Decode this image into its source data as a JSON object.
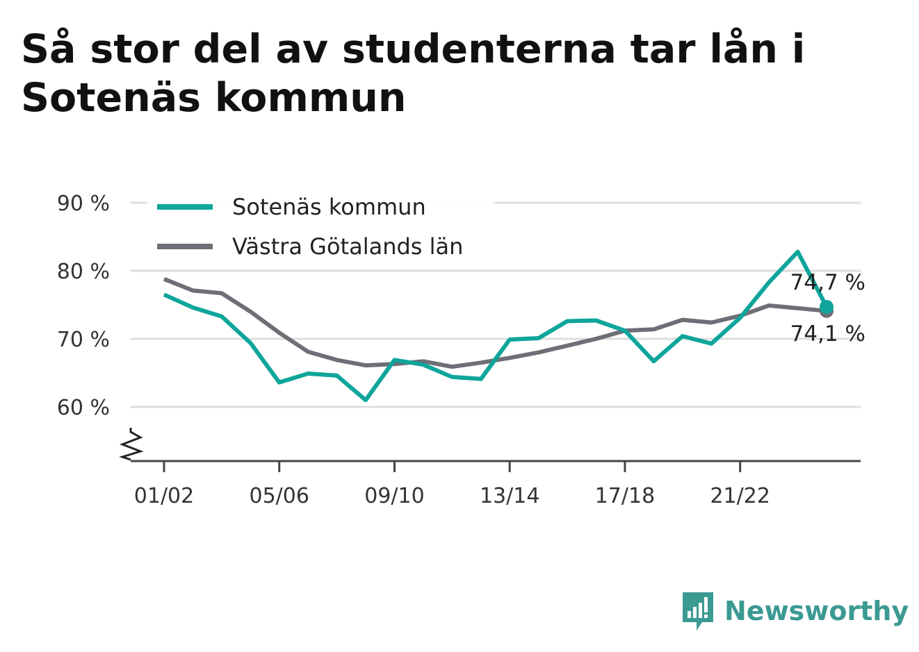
{
  "title": "Så stor del av studenterna tar lån i Sotenäs kommun",
  "brand": {
    "name": "Newsworthy",
    "icon": "newsworthy-logo-icon"
  },
  "colors": {
    "sotenas": "#0ea59b",
    "vastra": "#6e6e76",
    "grid": "#dddddd",
    "axis": "#444444"
  },
  "chart_data": {
    "type": "line",
    "title": "Så stor del av studenterna tar lån i Sotenäs kommun",
    "x": [
      "01/02",
      "02/03",
      "03/04",
      "04/05",
      "05/06",
      "06/07",
      "07/08",
      "08/09",
      "09/10",
      "10/11",
      "11/12",
      "12/13",
      "13/14",
      "14/15",
      "15/16",
      "16/17",
      "17/18",
      "18/19",
      "19/20",
      "20/21",
      "21/22",
      "22/23",
      "23/24",
      "24/25"
    ],
    "x_tick_labels": [
      "01/02",
      "05/06",
      "09/10",
      "13/14",
      "17/18",
      "21/22"
    ],
    "y_tick_labels": [
      "60 %",
      "70 %",
      "80 %",
      "90 %"
    ],
    "ylim": [
      52,
      90
    ],
    "y_ticks": [
      60,
      70,
      80,
      90
    ],
    "y_axis_break": true,
    "grid": true,
    "legend": "top-left",
    "series": [
      {
        "name": "Sotenäs kommun",
        "color": "#0ea59b",
        "values": [
          76.5,
          74.6,
          73.3,
          69.4,
          63.6,
          64.9,
          64.6,
          61.0,
          66.9,
          66.2,
          64.4,
          64.1,
          69.9,
          70.1,
          72.6,
          72.7,
          71.2,
          66.7,
          70.4,
          69.3,
          73.1,
          78.3,
          82.8,
          74.7
        ],
        "end_label": "74,7 %"
      },
      {
        "name": "Västra Götalands län",
        "color": "#6e6e76",
        "values": [
          78.8,
          77.1,
          76.7,
          74.0,
          70.9,
          68.1,
          66.9,
          66.1,
          66.3,
          66.7,
          65.9,
          66.5,
          67.2,
          68.0,
          69.0,
          70.0,
          71.2,
          71.4,
          72.8,
          72.4,
          73.4,
          74.9,
          74.5,
          74.1
        ],
        "end_label": "74,1 %"
      }
    ]
  }
}
